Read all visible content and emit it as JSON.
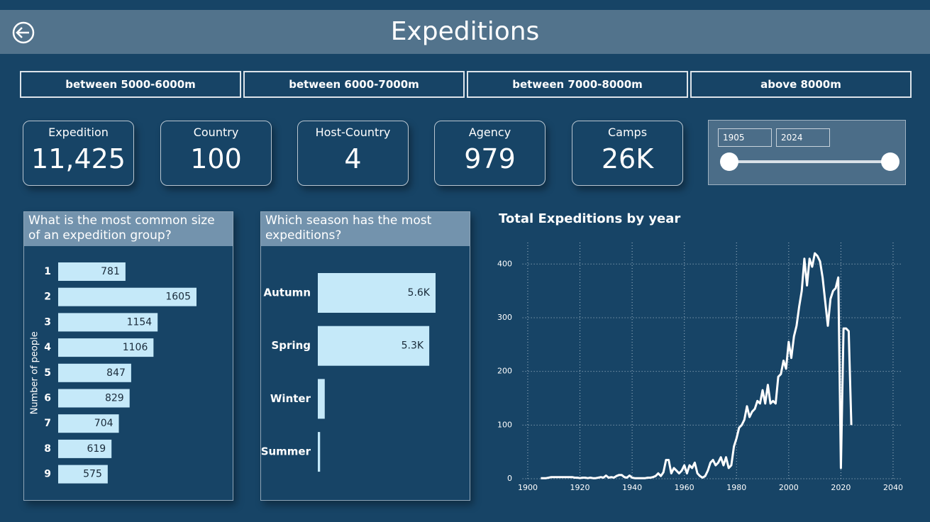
{
  "header": {
    "title": "Expeditions"
  },
  "filters": [
    "between 5000-6000m",
    "between 6000-7000m",
    "between 7000-8000m",
    "above 8000m"
  ],
  "cards": [
    {
      "label": "Expedition",
      "value": "11,425"
    },
    {
      "label": "Country",
      "value": "100"
    },
    {
      "label": "Host-Country",
      "value": "4"
    },
    {
      "label": "Agency",
      "value": "979"
    },
    {
      "label": "Camps",
      "value": "26K"
    }
  ],
  "slider": {
    "start": "1905",
    "end": "2024"
  },
  "chart_data": [
    {
      "type": "bar",
      "orientation": "horizontal",
      "title": "What is the most common size of an expedition group?",
      "ylabel": "Number of people",
      "categories": [
        "1",
        "2",
        "3",
        "4",
        "5",
        "6",
        "7",
        "8",
        "9"
      ],
      "values": [
        781,
        1605,
        1154,
        1106,
        847,
        829,
        704,
        619,
        575
      ],
      "color": "#c5e9f9"
    },
    {
      "type": "bar",
      "orientation": "horizontal",
      "title": "Which season has the most expeditions?",
      "categories": [
        "Autumn",
        "Spring",
        "Winter",
        "Summer"
      ],
      "values": [
        5600,
        5300,
        330,
        110
      ],
      "value_labels": [
        "5.6K",
        "5.3K",
        null,
        null
      ],
      "color": "#c5e9f9"
    },
    {
      "type": "line",
      "title": "Total Expeditions by year",
      "x": [
        1905,
        1906,
        1907,
        1908,
        1909,
        1910,
        1911,
        1912,
        1913,
        1914,
        1915,
        1916,
        1917,
        1918,
        1919,
        1920,
        1921,
        1922,
        1923,
        1924,
        1925,
        1926,
        1927,
        1928,
        1929,
        1930,
        1931,
        1932,
        1933,
        1934,
        1935,
        1936,
        1937,
        1938,
        1939,
        1940,
        1941,
        1942,
        1943,
        1944,
        1945,
        1946,
        1947,
        1948,
        1949,
        1950,
        1951,
        1952,
        1953,
        1954,
        1955,
        1956,
        1957,
        1958,
        1959,
        1960,
        1961,
        1962,
        1963,
        1964,
        1965,
        1966,
        1967,
        1968,
        1969,
        1970,
        1971,
        1972,
        1973,
        1974,
        1975,
        1976,
        1977,
        1978,
        1979,
        1980,
        1981,
        1982,
        1983,
        1984,
        1985,
        1986,
        1987,
        1988,
        1989,
        1990,
        1991,
        1992,
        1993,
        1994,
        1995,
        1996,
        1997,
        1998,
        1999,
        2000,
        2001,
        2002,
        2003,
        2004,
        2005,
        2006,
        2007,
        2008,
        2009,
        2010,
        2011,
        2012,
        2013,
        2014,
        2015,
        2016,
        2017,
        2018,
        2019,
        2020,
        2021,
        2022,
        2023,
        2024
      ],
      "values": [
        1,
        1,
        1,
        2,
        3,
        3,
        3,
        3,
        3,
        3,
        3,
        3,
        3,
        2,
        2,
        1,
        2,
        2,
        1,
        2,
        1,
        1,
        2,
        3,
        2,
        6,
        2,
        3,
        2,
        5,
        7,
        7,
        3,
        2,
        6,
        2,
        1,
        1,
        1,
        1,
        1,
        2,
        2,
        3,
        5,
        10,
        5,
        12,
        35,
        35,
        10,
        20,
        15,
        10,
        15,
        25,
        10,
        25,
        20,
        30,
        10,
        5,
        2,
        5,
        15,
        30,
        35,
        25,
        30,
        40,
        25,
        40,
        20,
        25,
        60,
        75,
        95,
        100,
        110,
        135,
        115,
        125,
        130,
        145,
        140,
        165,
        140,
        175,
        140,
        145,
        140,
        190,
        195,
        220,
        205,
        255,
        225,
        265,
        285,
        320,
        350,
        410,
        360,
        410,
        395,
        420,
        415,
        405,
        375,
        330,
        285,
        335,
        350,
        355,
        375,
        20,
        280,
        280,
        275,
        100
      ],
      "color": "#ffffff",
      "xlim": [
        1898,
        2043
      ],
      "ylim": [
        0,
        440
      ],
      "xticks": [
        1900,
        1920,
        1940,
        1960,
        1980,
        2000,
        2020,
        2040
      ],
      "yticks": [
        0,
        100,
        200,
        300,
        400
      ],
      "grid": true
    }
  ]
}
